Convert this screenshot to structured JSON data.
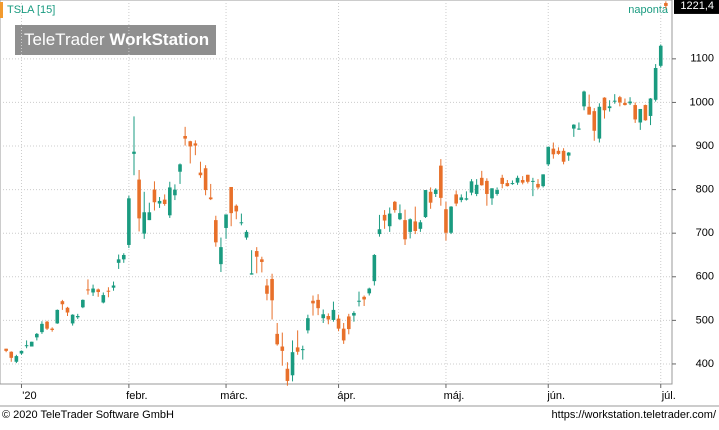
{
  "chart_data": {
    "type": "candlestick",
    "title": "TSLA [15]",
    "interval": "naponta",
    "watermark": [
      "TeleTrader",
      "WorkStation"
    ],
    "footer_left": "© 2020 TeleTrader Software GmbH",
    "footer_right": "https://workstation.teletrader.com/",
    "up_color": "#1a9b80",
    "down_color": "#e8702a",
    "grid": true,
    "ylim": [
      354,
      1235
    ],
    "yticks": [
      400,
      500,
      600,
      700,
      800,
      900,
      1000,
      1100
    ],
    "xlim": [
      -1.2,
      130.2
    ],
    "xticks": [
      {
        "value": 3,
        "label": "'20"
      },
      {
        "value": 24,
        "label": "febr."
      },
      {
        "value": 43,
        "label": "márc."
      },
      {
        "value": 65,
        "label": "ápr."
      },
      {
        "value": 86,
        "label": "máj."
      },
      {
        "value": 106,
        "label": "jún."
      },
      {
        "value": 128,
        "label": "júl."
      }
    ],
    "last_label": {
      "value": 1221.4,
      "label": "1221,4"
    },
    "ohlc": [
      [
        435,
        435,
        427,
        430
      ],
      [
        428,
        429,
        405,
        414
      ],
      [
        405,
        421,
        402,
        418
      ],
      [
        424,
        431,
        421,
        430
      ],
      [
        441,
        454,
        436,
        443
      ],
      [
        440,
        451,
        440,
        451
      ],
      [
        461,
        471,
        454,
        469
      ],
      [
        473,
        498,
        469,
        492
      ],
      [
        497,
        499,
        478,
        481
      ],
      [
        481,
        484,
        474,
        478
      ],
      [
        493,
        525,
        492,
        524
      ],
      [
        544,
        547,
        524,
        537
      ],
      [
        529,
        531,
        510,
        518
      ],
      [
        493,
        514,
        488,
        513
      ],
      [
        507,
        515,
        503,
        510
      ],
      [
        530,
        548,
        528,
        547
      ],
      [
        571,
        594,
        559,
        570
      ],
      [
        564,
        582,
        556,
        573
      ],
      [
        571,
        573,
        554,
        565
      ],
      [
        541,
        564,
        539,
        558
      ],
      [
        568,
        576,
        553,
        566
      ],
      [
        575,
        589,
        568,
        580
      ],
      [
        632,
        651,
        618,
        640
      ],
      [
        640,
        654,
        632,
        650
      ],
      [
        673,
        786,
        666,
        780
      ],
      [
        882,
        968,
        833,
        887
      ],
      [
        823,
        845,
        704,
        734
      ],
      [
        699,
        795,
        687,
        748
      ],
      [
        730,
        770,
        730,
        748
      ],
      [
        800,
        819,
        752,
        771
      ],
      [
        768,
        783,
        758,
        774
      ],
      [
        777,
        789,
        763,
        767
      ],
      [
        741,
        818,
        735,
        805
      ],
      [
        787,
        812,
        776,
        800
      ],
      [
        841,
        860,
        813,
        858
      ],
      [
        923,
        944,
        901,
        917
      ],
      [
        911,
        912,
        860,
        899
      ],
      [
        906,
        913,
        879,
        901
      ],
      [
        839,
        864,
        827,
        833
      ],
      [
        849,
        856,
        787,
        799
      ],
      [
        782,
        813,
        776,
        778
      ],
      [
        730,
        740,
        669,
        679
      ],
      [
        629,
        690,
        611,
        668
      ],
      [
        712,
        743,
        687,
        743
      ],
      [
        806,
        806,
        716,
        746
      ],
      [
        763,
        766,
        732,
        750
      ],
      [
        723,
        745,
        718,
        725
      ],
      [
        690,
        707,
        685,
        703
      ],
      [
        605,
        661,
        605,
        608
      ],
      [
        659,
        668,
        608,
        646
      ],
      [
        640,
        646,
        610,
        634
      ],
      [
        580,
        595,
        546,
        561
      ],
      [
        595,
        607,
        502,
        546
      ],
      [
        469,
        494,
        442,
        445
      ],
      [
        440,
        472,
        396,
        430
      ],
      [
        389,
        404,
        350,
        361
      ],
      [
        374,
        454,
        360,
        427
      ],
      [
        438,
        477,
        421,
        428
      ],
      [
        433,
        442,
        410,
        434
      ],
      [
        477,
        513,
        470,
        505
      ],
      [
        545,
        557,
        511,
        539
      ],
      [
        547,
        560,
        512,
        528
      ],
      [
        505,
        525,
        494,
        514
      ],
      [
        510,
        516,
        491,
        502
      ],
      [
        501,
        543,
        497,
        524
      ],
      [
        504,
        513,
        475,
        481
      ],
      [
        481,
        494,
        446,
        454
      ],
      [
        509,
        515,
        468,
        480
      ],
      [
        511,
        521,
        497,
        517
      ],
      [
        545,
        566,
        532,
        545
      ],
      [
        554,
        557,
        533,
        548
      ],
      [
        562,
        575,
        557,
        573
      ],
      [
        590,
        652,
        580,
        650
      ],
      [
        698,
        742,
        692,
        709
      ],
      [
        742,
        753,
        710,
        729
      ],
      [
        716,
        759,
        703,
        745
      ],
      [
        772,
        774,
        747,
        753
      ],
      [
        732,
        766,
        730,
        746
      ],
      [
        730,
        754,
        673,
        686
      ],
      [
        703,
        734,
        688,
        732
      ],
      [
        727,
        761,
        698,
        705
      ],
      [
        710,
        730,
        703,
        725
      ],
      [
        737,
        799,
        735,
        799
      ],
      [
        795,
        805,
        756,
        770
      ],
      [
        790,
        803,
        783,
        800
      ],
      [
        855,
        870,
        763,
        781
      ],
      [
        755,
        772,
        683,
        701
      ],
      [
        701,
        762,
        698,
        761
      ],
      [
        789,
        798,
        762,
        768
      ],
      [
        776,
        789,
        771,
        782
      ],
      [
        777,
        796,
        775,
        780
      ],
      [
        793,
        824,
        787,
        819
      ],
      [
        790,
        824,
        785,
        811
      ],
      [
        827,
        843,
        809,
        810
      ],
      [
        820,
        826,
        763,
        790
      ],
      [
        780,
        803,
        765,
        803
      ],
      [
        790,
        805,
        786,
        799
      ],
      [
        827,
        834,
        803,
        813
      ],
      [
        815,
        822,
        807,
        808
      ],
      [
        815,
        821,
        811,
        815
      ],
      [
        816,
        832,
        811,
        827
      ],
      [
        822,
        831,
        812,
        816
      ],
      [
        834,
        834,
        814,
        818
      ],
      [
        820,
        827,
        785,
        820
      ],
      [
        813,
        824,
        801,
        805
      ],
      [
        808,
        835,
        805,
        835
      ],
      [
        858,
        899,
        854,
        898
      ],
      [
        894,
        908,
        871,
        881
      ],
      [
        889,
        897,
        880,
        882
      ],
      [
        889,
        895,
        858,
        864
      ],
      [
        878,
        886,
        866,
        885
      ],
      [
        940,
        950,
        921,
        949
      ],
      [
        940,
        954,
        937,
        940
      ],
      [
        991,
        1027,
        982,
        1025
      ],
      [
        990,
        1018,
        972,
        972
      ],
      [
        980,
        987,
        912,
        935
      ],
      [
        917,
        998,
        908,
        990
      ],
      [
        1011,
        1012,
        963,
        982
      ],
      [
        987,
        1005,
        979,
        991
      ],
      [
        1003,
        1019,
        997,
        1004
      ],
      [
        1012,
        1015,
        991,
        1000
      ],
      [
        999,
        1009,
        993,
        994
      ],
      [
        998,
        1012,
        994,
        1002
      ],
      [
        994,
        1000,
        953,
        961
      ],
      [
        954,
        985,
        937,
        985
      ],
      [
        994,
        995,
        958,
        959
      ],
      [
        969,
        1010,
        948,
        1009
      ],
      [
        1006,
        1088,
        1002,
        1079
      ],
      [
        1084,
        1133,
        1080,
        1130
      ],
      [
        1228,
        1232,
        1215,
        1221.4
      ]
    ]
  }
}
